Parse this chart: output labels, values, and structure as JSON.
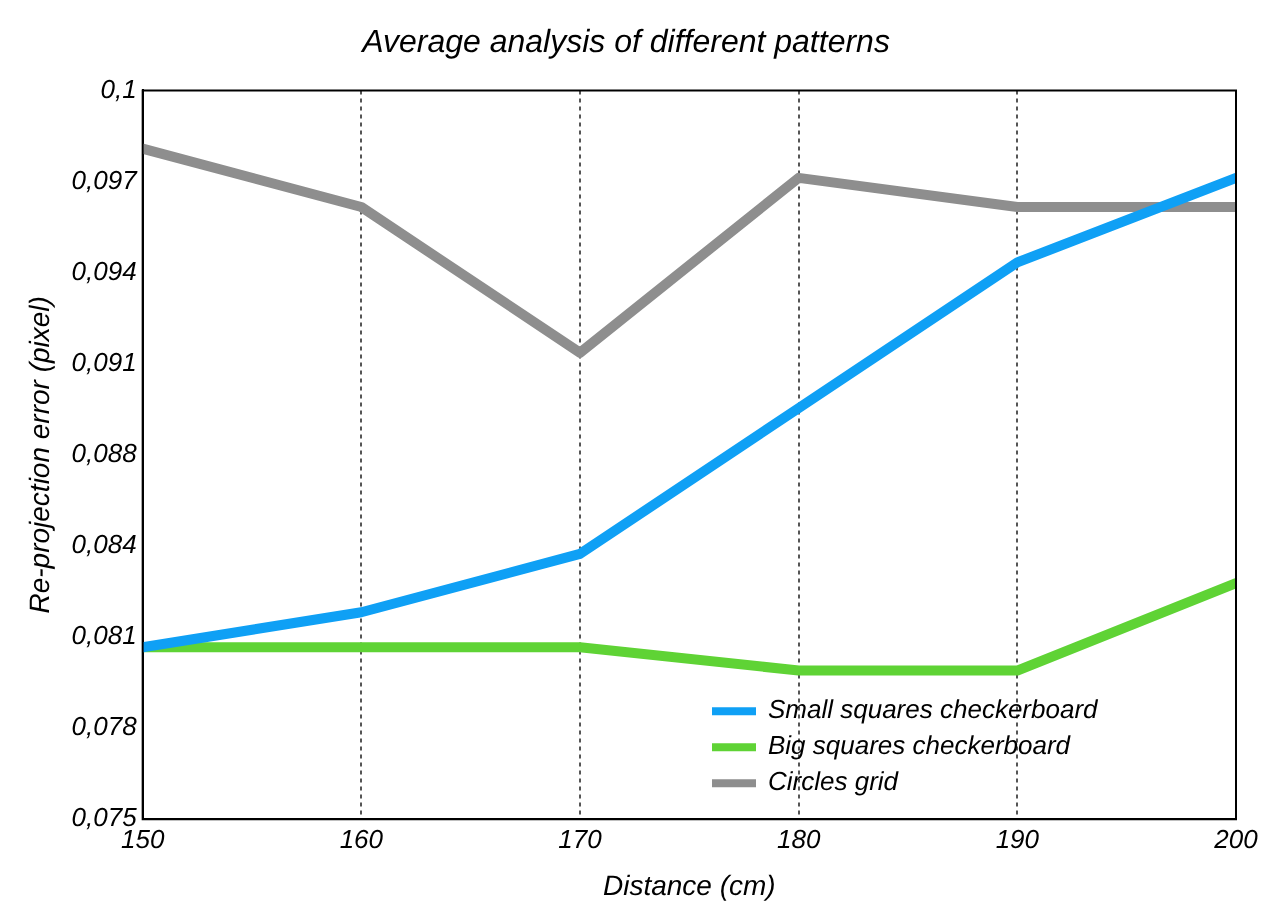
{
  "chart_data": {
    "type": "line",
    "title": "Average analysis of different patterns",
    "xlabel": "Distance (cm)",
    "ylabel": "Re-projection error (pixel)",
    "x": [
      150,
      160,
      170,
      180,
      190,
      200
    ],
    "series": [
      {
        "name": "Small squares checkerboard",
        "color": "#0fa0f5",
        "values": [
          0.0809,
          0.0821,
          0.0841,
          0.0891,
          0.0941,
          0.097
        ]
      },
      {
        "name": "Big squares checkerboard",
        "color": "#5fd335",
        "values": [
          0.0809,
          0.0809,
          0.0809,
          0.0801,
          0.0801,
          0.0831
        ]
      },
      {
        "name": "Circles grid",
        "color": "#8e8e8e",
        "values": [
          0.098,
          0.096,
          0.091,
          0.097,
          0.096,
          0.096
        ]
      }
    ],
    "xlim": [
      150,
      200
    ],
    "xticks": [
      150,
      160,
      170,
      180,
      190,
      200
    ],
    "ylim": [
      0.075,
      0.1
    ],
    "yticks": [
      {
        "value": 0.075,
        "label": "0,075"
      },
      {
        "value": 0.078125,
        "label": "0,078"
      },
      {
        "value": 0.08125,
        "label": "0,081"
      },
      {
        "value": 0.084375,
        "label": "0,084"
      },
      {
        "value": 0.0875,
        "label": "0,088"
      },
      {
        "value": 0.090625,
        "label": "0,091"
      },
      {
        "value": 0.09375,
        "label": "0,094"
      },
      {
        "value": 0.096875,
        "label": "0,097"
      },
      {
        "value": 0.1,
        "label": "0,1"
      }
    ],
    "grid": "x",
    "legend": "bottom right",
    "marker": "none",
    "line_style": "solid"
  }
}
